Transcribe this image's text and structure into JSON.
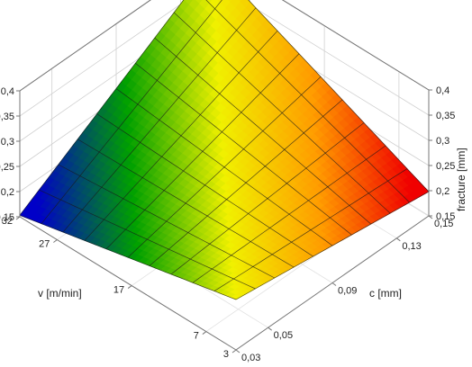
{
  "chart_data": {
    "type": "surface",
    "zlabel": "fracture [mm]",
    "xlabel": "v [m/min]",
    "ylabel": "c [mm]",
    "x_axis": {
      "range": [
        3,
        32
      ],
      "ticks": [
        "32",
        "27",
        "17",
        "7",
        "3"
      ],
      "tick_values": [
        32,
        27,
        17,
        7,
        3
      ]
    },
    "y_axis": {
      "range": [
        0.03,
        0.15
      ],
      "ticks": [
        "0,03",
        "0,05",
        "0,09",
        "0,13",
        "0,15"
      ],
      "tick_values": [
        0.03,
        0.05,
        0.09,
        0.13,
        0.15
      ]
    },
    "z_axis": {
      "range": [
        0.15,
        0.4
      ],
      "ticks": [
        "0,15",
        "0,2",
        "0,25",
        "0,3",
        "0,35",
        "0,4"
      ],
      "tick_values": [
        0.15,
        0.2,
        0.25,
        0.3,
        0.35,
        0.4
      ]
    },
    "surface_corners": [
      {
        "v": 32,
        "c": 0.03,
        "fracture": 0.153
      },
      {
        "v": 32,
        "c": 0.15,
        "fracture": 0.39
      },
      {
        "v": 3,
        "c": 0.15,
        "fracture": 0.198
      },
      {
        "v": 3,
        "c": 0.03,
        "fracture": 0.25
      }
    ],
    "grid": true,
    "colormap": [
      "#0000c8",
      "#00a000",
      "#f0f000",
      "#ff9c00",
      "#f00000"
    ]
  }
}
